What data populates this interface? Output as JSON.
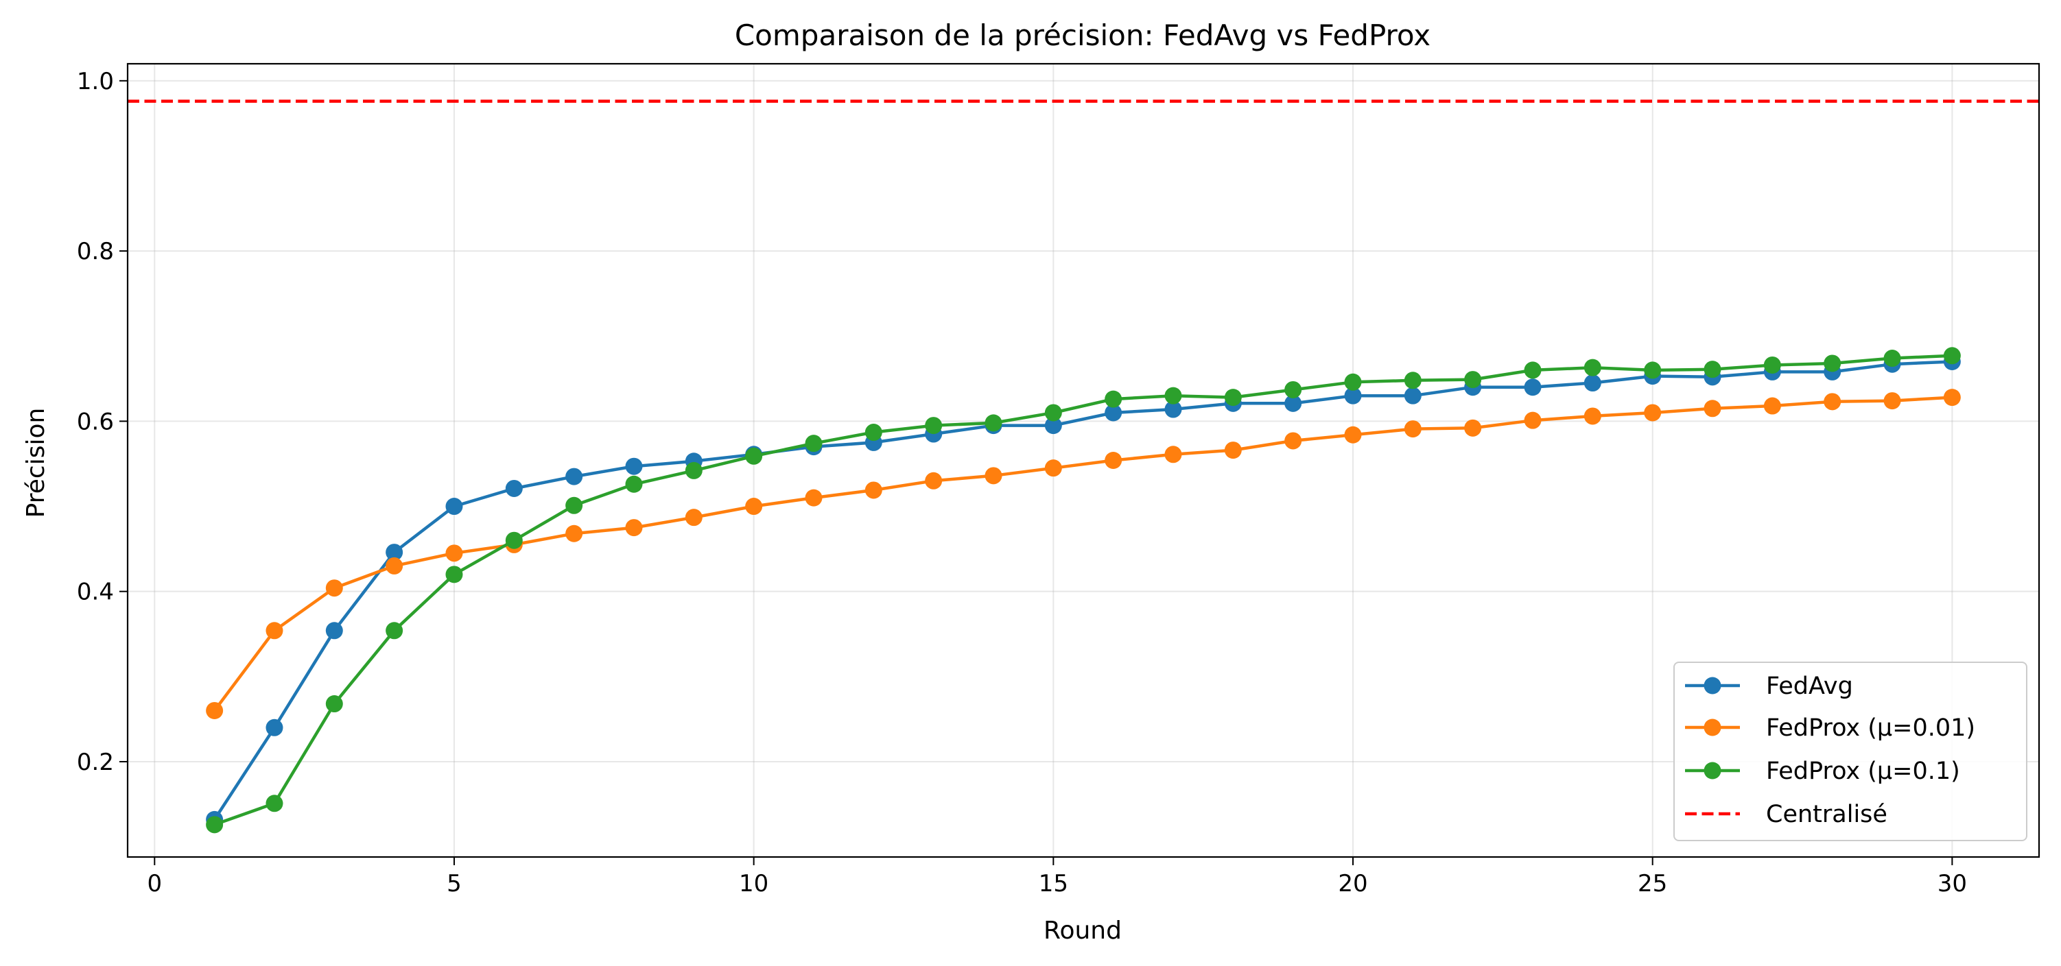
{
  "chart_data": {
    "type": "line",
    "title": "Comparaison de la précision: FedAvg vs FedProx",
    "xlabel": "Round",
    "ylabel": "Précision",
    "xlim": [
      -0.45,
      31.45
    ],
    "ylim": [
      0.088,
      1.02
    ],
    "xticks": [
      0,
      5,
      10,
      15,
      20,
      25,
      30
    ],
    "yticks": [
      0.2,
      0.4,
      0.6,
      0.8,
      1.0
    ],
    "xtick_labels": [
      "0",
      "5",
      "10",
      "15",
      "20",
      "25",
      "30"
    ],
    "ytick_labels": [
      "0.2",
      "0.4",
      "0.6",
      "0.8",
      "1.0"
    ],
    "grid": true,
    "legend_position": "bottom-right",
    "x": [
      1,
      2,
      3,
      4,
      5,
      6,
      7,
      8,
      9,
      10,
      11,
      12,
      13,
      14,
      15,
      16,
      17,
      18,
      19,
      20,
      21,
      22,
      23,
      24,
      25,
      26,
      27,
      28,
      29,
      30
    ],
    "series": [
      {
        "name": "FedAvg",
        "color": "#1f77b4",
        "marker": "circle",
        "values": [
          0.132,
          0.24,
          0.354,
          0.446,
          0.5,
          0.521,
          0.535,
          0.547,
          0.553,
          0.561,
          0.57,
          0.575,
          0.585,
          0.595,
          0.595,
          0.61,
          0.614,
          0.621,
          0.621,
          0.63,
          0.63,
          0.64,
          0.64,
          0.645,
          0.653,
          0.652,
          0.658,
          0.658,
          0.667,
          0.67
        ]
      },
      {
        "name": "FedProx (μ=0.01)",
        "color": "#ff7f0e",
        "marker": "circle",
        "values": [
          0.26,
          0.354,
          0.404,
          0.43,
          0.445,
          0.455,
          0.468,
          0.475,
          0.487,
          0.5,
          0.51,
          0.519,
          0.53,
          0.536,
          0.545,
          0.554,
          0.561,
          0.566,
          0.577,
          0.584,
          0.591,
          0.592,
          0.601,
          0.606,
          0.61,
          0.615,
          0.618,
          0.623,
          0.624,
          0.628
        ]
      },
      {
        "name": "FedProx (μ=0.1)",
        "color": "#2ca02c",
        "marker": "circle",
        "values": [
          0.126,
          0.151,
          0.268,
          0.354,
          0.42,
          0.46,
          0.501,
          0.526,
          0.542,
          0.559,
          0.574,
          0.587,
          0.595,
          0.598,
          0.61,
          0.626,
          0.63,
          0.628,
          0.637,
          0.646,
          0.648,
          0.649,
          0.66,
          0.663,
          0.66,
          0.661,
          0.666,
          0.668,
          0.674,
          0.677
        ]
      }
    ],
    "reference_lines": [
      {
        "name": "Centralisé",
        "y": 0.976,
        "color": "#ff0000",
        "style": "dashed"
      }
    ]
  }
}
